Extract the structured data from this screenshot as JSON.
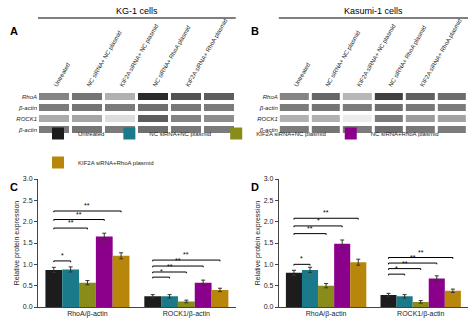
{
  "chart_data": [
    {
      "type": "heatmap",
      "title": "A",
      "subtitle": "KG-1 cells",
      "x": [
        "Untreated",
        "NC siRNA+ NC plasmid",
        "KIF2A siRNA+ NC plasmid",
        "NC siRNA+ RhoA plasmid",
        "KIF2A siRNA+ RhoA plasmid",
        null
      ],
      "y": [
        "RhoA",
        "β-actin",
        "ROCK1",
        "β-actin"
      ],
      "cells": [
        [
          0.45,
          0.5,
          0.3,
          0.75,
          0.62,
          0.58
        ],
        [
          0.48,
          0.5,
          0.48,
          0.52,
          0.49,
          0.48
        ],
        [
          0.32,
          0.34,
          0.15,
          0.58,
          0.45,
          0.42
        ],
        [
          0.48,
          0.5,
          0.48,
          0.52,
          0.49,
          0.48
        ]
      ]
    },
    {
      "type": "heatmap",
      "title": "B",
      "subtitle": "Kasumi-1 cells",
      "x": [
        "Untreated",
        "NC siRNA+ NC plasmid",
        "KIF2A siRNA+ NC plasmid",
        "NC siRNA+ RhoA plasmid",
        "KIF2A siRNA+ RhoA plasmid",
        null
      ],
      "y": [
        "RhoA",
        "β-actin",
        "ROCK1",
        "β-actin"
      ],
      "cells": [
        [
          0.45,
          0.55,
          0.28,
          0.68,
          0.57,
          0.53
        ],
        [
          0.48,
          0.5,
          0.48,
          0.52,
          0.49,
          0.48
        ],
        [
          0.3,
          0.3,
          0.1,
          0.48,
          0.37,
          0.35
        ],
        [
          0.48,
          0.5,
          0.48,
          0.52,
          0.49,
          0.48
        ]
      ]
    },
    {
      "type": "bar",
      "title": "C",
      "categories": [
        "RhoA/β-actin",
        "ROCK1/β-actin"
      ],
      "series": [
        {
          "name": "Untreated",
          "color": "#1c1c1c",
          "values": [
            0.87,
            0.25
          ],
          "errors": [
            0.06,
            0.04
          ]
        },
        {
          "name": "NC siRNA+NC plasmid",
          "color": "#1a7a8a",
          "values": [
            0.88,
            0.25
          ],
          "errors": [
            0.06,
            0.04
          ]
        },
        {
          "name": "KIF2A siRNA+NC plasmid",
          "color": "#8a8c1a",
          "values": [
            0.57,
            0.13
          ],
          "errors": [
            0.05,
            0.03
          ]
        },
        {
          "name": "NC siRNA+RhoA plasmid",
          "color": "#8b008b",
          "values": [
            1.65,
            0.57
          ],
          "errors": [
            0.08,
            0.06
          ]
        },
        {
          "name": "KIF2A siRNA+RhoA plasmid",
          "color": "#b8860b",
          "values": [
            1.2,
            0.4
          ],
          "errors": [
            0.07,
            0.04
          ]
        }
      ],
      "ylabel": "Relative protein expression",
      "ylim": [
        0.0,
        3.0
      ],
      "yticks": [
        {
          "value": 0.0,
          "label": "0.0"
        },
        0.5,
        {
          "value": 1.0,
          "label": "1.0"
        },
        1.5,
        {
          "value": 2.0,
          "label": "2.0"
        },
        2.5,
        {
          "value": 3.0,
          "label": "3.0"
        }
      ],
      "grid": false,
      "legend": "top",
      "annotations": [
        {
          "category": "RhoA/β-actin",
          "from": "Untreated",
          "to": "NC siRNA+NC plasmid",
          "y": 1.08,
          "text": "*"
        },
        {
          "category": "RhoA/β-actin",
          "from": "Untreated",
          "to": "KIF2A siRNA+NC plasmid",
          "y": 1.85,
          "text": "**"
        },
        {
          "category": "RhoA/β-actin",
          "from": "Untreated",
          "to": "NC siRNA+RhoA plasmid",
          "y": 2.05,
          "text": "**"
        },
        {
          "category": "RhoA/β-actin",
          "from": "Untreated",
          "to": "KIF2A siRNA+RhoA plasmid",
          "y": 2.25,
          "text": "**"
        },
        {
          "category": "ROCK1/β-actin",
          "from": "Untreated",
          "to": "NC siRNA+NC plasmid",
          "y": 0.7,
          "text": "*"
        },
        {
          "category": "ROCK1/β-actin",
          "from": "Untreated",
          "to": "KIF2A siRNA+NC plasmid",
          "y": 0.82,
          "text": "**"
        },
        {
          "category": "ROCK1/β-actin",
          "from": "Untreated",
          "to": "NC siRNA+RhoA plasmid",
          "y": 0.96,
          "text": "**"
        },
        {
          "category": "ROCK1/β-actin",
          "from": "Untreated",
          "to": "KIF2A siRNA+RhoA plasmid",
          "y": 1.1,
          "text": "**"
        }
      ]
    },
    {
      "type": "bar",
      "title": "D",
      "categories": [
        "RhoA/β-actin",
        "ROCK1/β-actin"
      ],
      "series": [
        {
          "name": "Untreated",
          "color": "#1c1c1c",
          "values": [
            0.8,
            0.28
          ],
          "errors": [
            0.06,
            0.04
          ]
        },
        {
          "name": "NC siRNA+NC plasmid",
          "color": "#1a7a8a",
          "values": [
            0.87,
            0.25
          ],
          "errors": [
            0.06,
            0.04
          ]
        },
        {
          "name": "KIF2A siRNA+NC plasmid",
          "color": "#8a8c1a",
          "values": [
            0.5,
            0.12
          ],
          "errors": [
            0.05,
            0.03
          ]
        },
        {
          "name": "NC siRNA+RhoA plasmid",
          "color": "#8b008b",
          "values": [
            1.48,
            0.67
          ],
          "errors": [
            0.09,
            0.06
          ]
        },
        {
          "name": "KIF2A siRNA+RhoA plasmid",
          "color": "#b8860b",
          "values": [
            1.05,
            0.38
          ],
          "errors": [
            0.07,
            0.04
          ]
        }
      ],
      "ylabel": "Relative protein expression",
      "ylim": [
        0.0,
        3.0
      ],
      "yticks": [
        {
          "value": 0.0,
          "label": "0.0"
        },
        0.5,
        {
          "value": 1.0,
          "label": "1.0"
        },
        1.5,
        {
          "value": 2.0,
          "label": "2.0"
        },
        2.5,
        {
          "value": 3.0,
          "label": "3.0"
        }
      ],
      "grid": false,
      "legend": "top",
      "annotations": [
        {
          "category": "RhoA/β-actin",
          "from": "Untreated",
          "to": "NC siRNA+NC plasmid",
          "y": 1.0,
          "text": "*"
        },
        {
          "category": "RhoA/β-actin",
          "from": "Untreated",
          "to": "KIF2A siRNA+NC plasmid",
          "y": 1.72,
          "text": "**"
        },
        {
          "category": "RhoA/β-actin",
          "from": "Untreated",
          "to": "NC siRNA+RhoA plasmid",
          "y": 1.9,
          "text": "*"
        },
        {
          "category": "RhoA/β-actin",
          "from": "Untreated",
          "to": "KIF2A siRNA+RhoA plasmid",
          "y": 2.08,
          "text": "**"
        },
        {
          "category": "ROCK1/β-actin",
          "from": "Untreated",
          "to": "NC siRNA+NC plasmid",
          "y": 0.77,
          "text": "*"
        },
        {
          "category": "ROCK1/β-actin",
          "from": "Untreated",
          "to": "KIF2A siRNA+NC plasmid",
          "y": 0.9,
          "text": "**"
        },
        {
          "category": "ROCK1/β-actin",
          "from": "Untreated",
          "to": "NC siRNA+RhoA plasmid",
          "y": 1.03,
          "text": "**"
        },
        {
          "category": "ROCK1/β-actin",
          "from": "Untreated",
          "to": "KIF2A siRNA+RhoA plasmid",
          "y": 1.16,
          "text": "**"
        }
      ]
    }
  ]
}
